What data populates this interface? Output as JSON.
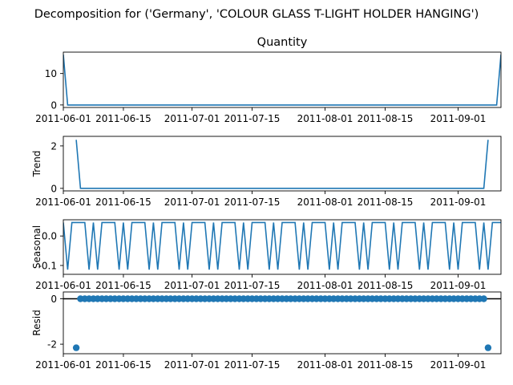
{
  "suptitle": "Decomposition for ('Germany', 'COLOUR GLASS T-LIGHT HOLDER HANGING')",
  "chart_data": [
    {
      "type": "line",
      "title": "Quantity",
      "ylabel": "",
      "x_start": "2011-06-01",
      "x_end": "2011-09-11",
      "x_ticks": [
        "2011-06-01",
        "2011-06-15",
        "2011-07-01",
        "2011-07-15",
        "2011-08-01",
        "2011-08-15",
        "2011-09-01"
      ],
      "ylim": [
        -0.8,
        16.8
      ],
      "y_ticks": [
        0,
        10
      ],
      "series": [
        {
          "color": "#1f77b4",
          "points": [
            [
              "2011-06-01",
              16
            ],
            [
              "2011-06-02",
              0
            ],
            [
              "2011-09-10",
              0
            ],
            [
              "2011-09-11",
              16
            ]
          ]
        }
      ]
    },
    {
      "type": "line",
      "title": "",
      "ylabel": "Trend",
      "x_start": "2011-06-01",
      "x_end": "2011-09-11",
      "x_ticks": [
        "2011-06-01",
        "2011-06-15",
        "2011-07-01",
        "2011-07-15",
        "2011-08-01",
        "2011-08-15",
        "2011-09-01"
      ],
      "ylim": [
        -0.12,
        2.45
      ],
      "y_ticks": [
        0,
        2
      ],
      "series": [
        {
          "color": "#1f77b4",
          "points": [
            [
              "2011-06-04",
              2.286
            ],
            [
              "2011-06-05",
              0
            ],
            [
              "2011-09-07",
              0
            ],
            [
              "2011-09-08",
              2.286
            ]
          ]
        }
      ]
    },
    {
      "type": "line",
      "title": "",
      "ylabel": "Seasonal",
      "x_start": "2011-06-01",
      "x_end": "2011-09-11",
      "x_ticks": [
        "2011-06-01",
        "2011-06-15",
        "2011-07-01",
        "2011-07-15",
        "2011-08-01",
        "2011-08-15",
        "2011-09-01"
      ],
      "ylim": [
        -0.13,
        0.055
      ],
      "y_ticks": [
        -0.1,
        0.0
      ],
      "period": 7,
      "series": [
        {
          "color": "#1f77b4",
          "start": "2011-06-01",
          "count": 103,
          "weekly_pattern": [
            0.0457,
            -0.1143,
            0.0457,
            0.0457,
            0.0457,
            0.0457,
            -0.1143
          ]
        }
      ]
    },
    {
      "type": "scatter",
      "title": "",
      "ylabel": "Resid",
      "x_start": "2011-06-01",
      "x_end": "2011-09-11",
      "x_ticks": [
        "2011-06-01",
        "2011-06-15",
        "2011-07-01",
        "2011-07-15",
        "2011-08-01",
        "2011-08-15",
        "2011-09-01"
      ],
      "ylim": [
        -2.42,
        0.3
      ],
      "y_ticks": [
        -2,
        0
      ],
      "zero_line": true,
      "series": [
        {
          "color": "#1f77b4",
          "start": "2011-06-04",
          "count": 97,
          "values_note": "",
          "low_points": [
            [
              "2011-06-04",
              -2.16
            ],
            [
              "2011-09-08",
              -2.16
            ]
          ],
          "weekly_pattern": [
            0.0,
            0.0,
            0.0,
            0.0,
            0.0,
            0.0,
            0.0
          ]
        }
      ]
    }
  ]
}
